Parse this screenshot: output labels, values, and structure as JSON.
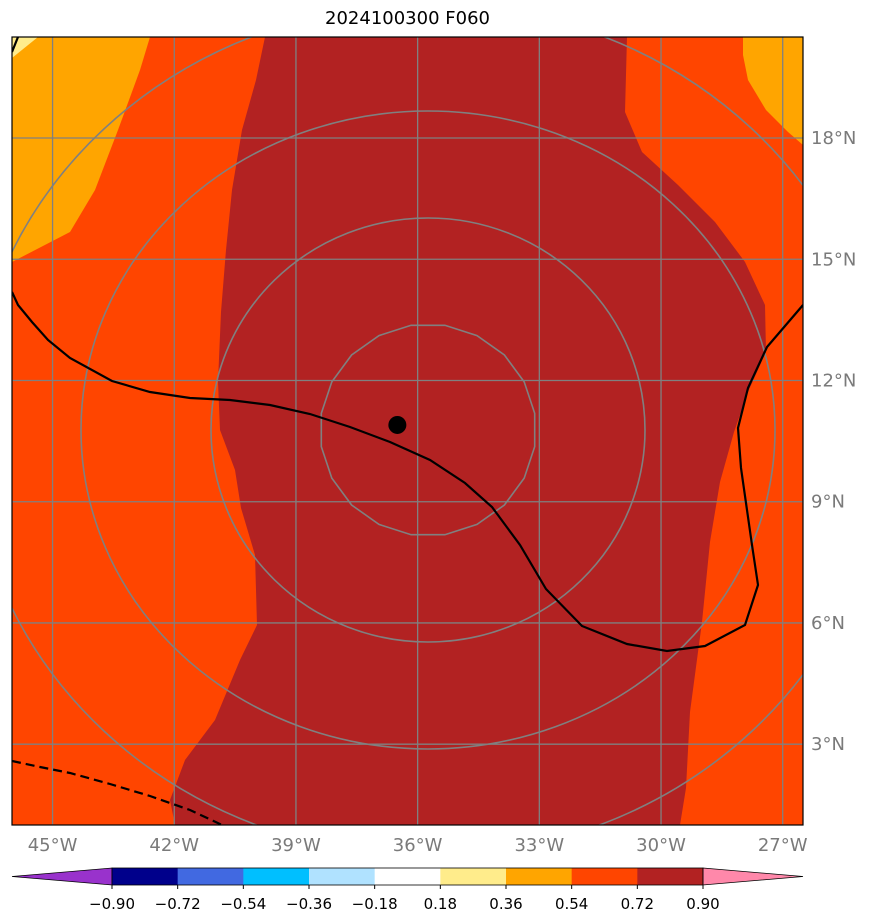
{
  "title": "2024100300 F060",
  "map": {
    "lon_range": [
      -46,
      -26.5
    ],
    "lat_range": [
      1,
      20.5
    ],
    "lon_ticks": [
      {
        "value": -45,
        "label": "45°W"
      },
      {
        "value": -42,
        "label": "42°W"
      },
      {
        "value": -39,
        "label": "39°W"
      },
      {
        "value": -36,
        "label": "36°W"
      },
      {
        "value": -33,
        "label": "33°W"
      },
      {
        "value": -30,
        "label": "30°W"
      },
      {
        "value": -27,
        "label": "27°W"
      }
    ],
    "lat_ticks": [
      {
        "value": 18,
        "label": "18°N"
      },
      {
        "value": 15,
        "label": "15°N"
      },
      {
        "value": 12,
        "label": "12°N"
      },
      {
        "value": 9,
        "label": "9°N"
      },
      {
        "value": 6,
        "label": "6°N"
      },
      {
        "value": 3,
        "label": "3°N"
      }
    ],
    "storm_center": {
      "lon": -36.5,
      "lat": 10.9
    },
    "range_rings_count": 4,
    "colors": {
      "fill_072_090": "#b22222",
      "fill_054_072": "#ff4500",
      "fill_036_054": "#ffa500",
      "fill_018_036": "#ffec8b",
      "grid": "#808080",
      "contour": "#000000"
    }
  },
  "colorbar": {
    "levels": [
      "−0.90",
      "−0.72",
      "−0.54",
      "−0.36",
      "−0.18",
      "0.18",
      "0.36",
      "0.54",
      "0.72",
      "0.90"
    ],
    "colors": [
      "#9932cc",
      "#00008b",
      "#4169e1",
      "#00bfff",
      "#b0e2ff",
      "#ffffff",
      "#ffec8b",
      "#ffa500",
      "#ff4500",
      "#b22222",
      "#ff88aa"
    ]
  }
}
